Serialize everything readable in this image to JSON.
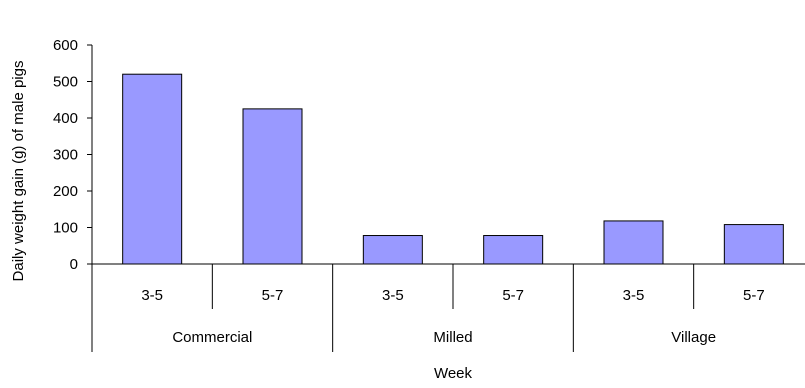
{
  "chart_data": {
    "type": "bar",
    "title": "",
    "ylabel": "Daily weight gain (g) of male pigs",
    "xlabel": "Week",
    "ylim": [
      0,
      600
    ],
    "yticks": [
      0,
      100,
      200,
      300,
      400,
      500,
      600
    ],
    "groups": [
      "Commercial",
      "Milled",
      "Village"
    ],
    "categories": [
      "3-5",
      "5-7",
      "3-5",
      "5-7",
      "3-5",
      "5-7"
    ],
    "group_of_category": [
      0,
      0,
      1,
      1,
      2,
      2
    ],
    "values": [
      520,
      425,
      78,
      78,
      118,
      108
    ],
    "bar_color": "#9999ff",
    "bar_stroke": "#000000",
    "grid": false,
    "legend": "none"
  }
}
